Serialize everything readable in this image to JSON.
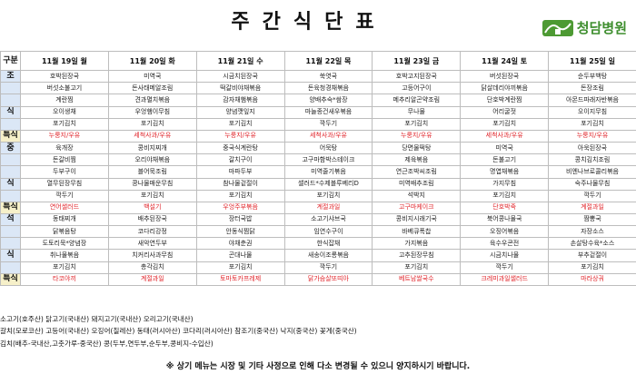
{
  "header": {
    "title": "주간식단표",
    "logo_text": "청담병원",
    "logo_icon": "hospital-logo-icon",
    "logo_color": "#3e8e2e"
  },
  "table": {
    "corner_label": "구분",
    "days": [
      "11월 19일 월",
      "11월 20일 화",
      "11월 21일 수",
      "11월 22일 목",
      "11월 23일 금",
      "11월 24일 토",
      "11월 25일 일"
    ],
    "meals": [
      {
        "label_top": "조",
        "label_bottom": "식",
        "rows": [
          [
            "호박된장국",
            "미역국",
            "시금치된장국",
            "쑥엿국",
            "호박고지된장국",
            "버섯된장국",
            "순두부백탕"
          ],
          [
            "버섯소불고기",
            "돈사태메알조림",
            "떡갈비야채볶음",
            "돈육청경채볶음",
            "고등어구이",
            "닭살데리야끼볶음",
            "돈장조림"
          ],
          [
            "계란찜",
            "견과멸치볶음",
            "감자채햄볶음",
            "양배추숙*쌈장",
            "메추리알곤약조림",
            "단호박계란찜",
            "아몬드파래자반볶음"
          ],
          [
            "오이생채",
            "우엉햄이무침",
            "양념깻잎지",
            "마늘종건새우볶음",
            "무나물",
            "어리굴젓",
            "오이지무침"
          ],
          [
            "포기김치",
            "포기김치",
            "포기김치",
            "깍두기",
            "포기김치",
            "포기김치",
            "포기김치"
          ]
        ],
        "special_label": "특식",
        "special": [
          "누룽지/우유",
          "세척사과/우유",
          "누룽지/우유",
          "세척사과/우유",
          "누룽지/우유",
          "세척사과/우유",
          "누룽지/우유"
        ]
      },
      {
        "label_top": "중",
        "label_bottom": "식",
        "rows": [
          [
            "육개장",
            "콩비지찌개",
            "중국식계란탕",
            "어묵탕",
            "당면물떡탕",
            "미역국",
            "아욱된장국"
          ],
          [
            "돈갈비찜",
            "오리야채볶음",
            "갈치구이",
            "고구마함박스테이크",
            "제육볶음",
            "돈불고기",
            "콩치김치조림"
          ],
          [
            "두부구이",
            "블어묵조림",
            "마파두부",
            "미역줄기볶음",
            "연근조박씨조림",
            "명엽채볶음",
            "비엔나브로콜리볶음"
          ],
          [
            "열무된장무침",
            "콩나물매운무침",
            "참나물겉절이",
            "샐러드*수제블루베리D",
            "미역배추조림",
            "가지무침",
            "숙주나물무침"
          ],
          [
            "깍두기",
            "포기김치",
            "포기김치",
            "포기김치",
            "석박지",
            "포기김치",
            "깍두기"
          ]
        ],
        "special_label": "특식",
        "special": [
          "연어샐러드",
          "백설기",
          "우엉주부볶음",
          "계절과일",
          "고구마케이크",
          "단호박죽",
          "계절과일"
        ]
      },
      {
        "label_top": "석",
        "label_bottom": "식",
        "rows": [
          [
            "동태찌개",
            "배추된장국",
            "장터국밥",
            "소고기샤브국",
            "콩비지시래기국",
            "북어콩나물국",
            "짬뽕국"
          ],
          [
            "닭볶음탕",
            "코다리강정",
            "안동식찜닭",
            "임연수구이",
            "바베큐폭찹",
            "오징어볶음",
            "자장소스"
          ],
          [
            "도토리묵*양념장",
            "새악연두부",
            "야채춘권",
            "한식잡채",
            "가지볶음",
            "육수우콘전",
            "손살탕수육*소스"
          ],
          [
            "취나물볶음",
            "치커리사과무침",
            "곤대나물",
            "새송이조롱볶음",
            "고추된장무침",
            "시금치나물",
            "부추겉절이"
          ],
          [
            "포기김치",
            "총각김치",
            "포기김치",
            "깍두기",
            "포기김치",
            "깍두기",
            "포기김치"
          ]
        ],
        "special_label": "특식",
        "special": [
          "타코야끼",
          "계절과일",
          "토마토카프레제",
          "닭가슴살또띠아",
          "베트남쌀국수",
          "크레미과일샐러드",
          "마라상궈"
        ]
      }
    ]
  },
  "origin_notes": [
    "소고기(호주산)    닭고기(국내산)    돼지고기(국내산)    오리고기(국내산)",
    "갈치(모로코산)  고등어(국내산)  오징어(칠레산)  동태(러시아산)  코다리(러시아산)  참조기(중국산)  낙지(중국산)  꽃게(중국산)",
    "김치(배추-국내산,고춧가루-중국산)      콩(두부,연두부,순두부,콩비지-수입산)"
  ],
  "footer_notice": "※ 상기 메뉴는 시장 및 기타 사정으로 인해 다소 변경될 수 있으니 양지하시기 바랍니다.",
  "colors": {
    "group_bg": "#dbe7f6",
    "special_bg": "#f6f0c9",
    "special_text": "#e0242a"
  }
}
